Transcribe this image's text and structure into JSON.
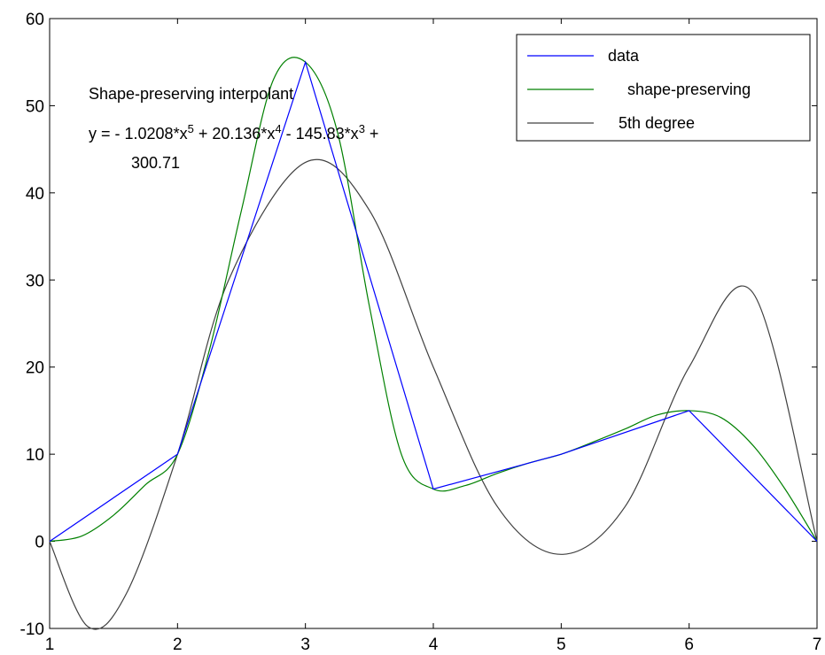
{
  "chart_data": {
    "type": "line",
    "xlim": [
      1,
      7
    ],
    "ylim": [
      -10,
      60
    ],
    "xticks": [
      1,
      2,
      3,
      4,
      5,
      6,
      7
    ],
    "yticks": [
      -10,
      0,
      10,
      20,
      30,
      40,
      50,
      60
    ],
    "grid": false,
    "legend_position": "top-right",
    "legend": [
      "data",
      "shape-preserving",
      "5th degree"
    ],
    "annotation": {
      "line1": "Shape-preserving interpolant",
      "line2_parts": [
        {
          "t": "y = - 1.0208*x",
          "sup": false
        },
        {
          "t": "5",
          "sup": true
        },
        {
          "t": " + 20.136*x",
          "sup": false
        },
        {
          "t": "4",
          "sup": true
        },
        {
          "t": " - 145.83*x",
          "sup": false
        },
        {
          "t": "3",
          "sup": true
        },
        {
          "t": " + ",
          "sup": false
        }
      ],
      "line3": "300.71"
    },
    "series": [
      {
        "name": "data",
        "color": "#0000ff",
        "x": [
          1,
          2,
          3,
          4,
          5,
          6,
          7
        ],
        "y": [
          0,
          10,
          55,
          6,
          10,
          15,
          0
        ]
      },
      {
        "name": "shape-preserving",
        "color": "#008000",
        "x": [
          1,
          1.25,
          1.5,
          1.75,
          2,
          2.25,
          2.5,
          2.75,
          3,
          3.25,
          3.5,
          3.75,
          4,
          4.25,
          4.5,
          4.75,
          5,
          5.25,
          5.5,
          5.75,
          6,
          6.25,
          6.5,
          6.75,
          7
        ],
        "y": [
          0,
          0.6,
          3,
          6.5,
          10,
          22,
          38,
          53,
          55,
          47,
          27,
          10,
          6,
          6.4,
          7.8,
          9,
          10,
          11.4,
          12.9,
          14.5,
          15,
          14.2,
          11,
          6,
          0
        ]
      },
      {
        "name": "5th degree",
        "color": "#404040",
        "x": [
          1,
          1.3,
          1.6,
          2,
          2.4,
          3,
          3.5,
          4,
          4.5,
          5,
          5.5,
          6,
          6.5,
          7
        ],
        "y": [
          0,
          -9.8,
          -6,
          10,
          30,
          43.5,
          38,
          20,
          4,
          -1.5,
          4,
          20,
          28.5,
          0
        ]
      }
    ]
  }
}
